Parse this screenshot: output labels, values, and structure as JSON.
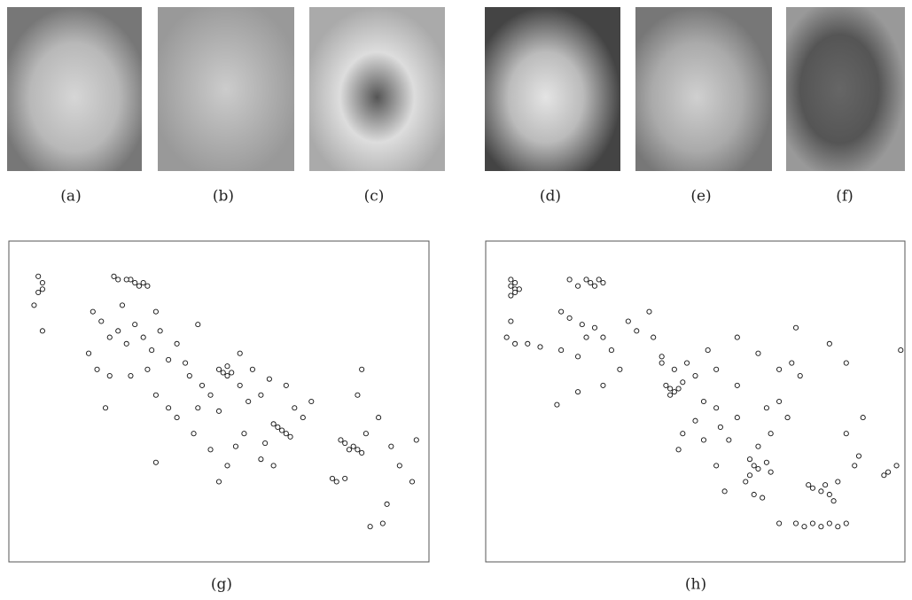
{
  "panels": [
    {
      "label": "(a)"
    },
    {
      "label": "(b)"
    },
    {
      "label": "(c)"
    },
    {
      "label": "(d)"
    },
    {
      "label": "(e)"
    },
    {
      "label": "(f)"
    },
    {
      "label": "(g)"
    },
    {
      "label": "(h)"
    }
  ],
  "chart_data": [
    {
      "type": "scatter",
      "xlim": [
        0,
        100
      ],
      "ylim": [
        0,
        100
      ],
      "x": [
        7,
        8,
        7,
        6,
        8,
        8,
        29,
        30,
        31,
        32,
        28,
        26,
        25,
        33,
        20,
        22,
        24,
        19,
        21,
        26,
        28,
        30,
        32,
        34,
        36,
        38,
        33,
        29,
        40,
        42,
        24,
        45,
        35,
        27,
        43,
        50,
        51,
        52,
        53,
        52,
        48,
        46,
        55,
        57,
        60,
        58,
        55,
        62,
        50,
        45,
        38,
        35,
        40,
        44,
        48,
        52,
        50,
        54,
        64,
        65,
        66,
        67,
        63,
        68,
        70,
        72,
        66,
        61,
        60,
        63,
        56,
        79,
        80,
        82,
        83,
        84,
        81,
        77,
        78,
        80,
        85,
        88,
        91,
        93,
        97,
        96,
        90,
        86,
        89,
        83,
        84,
        23,
        35
      ],
      "y": [
        89,
        87,
        84,
        80,
        72,
        85,
        88,
        87,
        86,
        87,
        88,
        88,
        89,
        86,
        78,
        75,
        70,
        65,
        60,
        72,
        68,
        74,
        70,
        66,
        72,
        63,
        60,
        58,
        68,
        62,
        58,
        74,
        78,
        80,
        58,
        60,
        59,
        58,
        59,
        61,
        52,
        55,
        55,
        50,
        52,
        60,
        65,
        57,
        47,
        48,
        48,
        52,
        45,
        40,
        35,
        30,
        25,
        36,
        42,
        41,
        40,
        39,
        43,
        48,
        45,
        50,
        55,
        37,
        32,
        30,
        40,
        38,
        37,
        36,
        35,
        34,
        35,
        26,
        25,
        26,
        40,
        45,
        36,
        30,
        38,
        25,
        18,
        11,
        12,
        52,
        60,
        48,
        31
      ]
    },
    {
      "type": "scatter",
      "xlim": [
        0,
        100
      ],
      "ylim": [
        0,
        100
      ],
      "x": [
        6,
        7,
        7,
        8,
        6,
        7,
        6,
        5,
        7,
        10,
        13,
        6,
        24,
        25,
        26,
        27,
        28,
        22,
        20,
        18,
        20,
        23,
        26,
        24,
        18,
        22,
        28,
        30,
        34,
        36,
        39,
        40,
        42,
        32,
        28,
        17,
        22,
        43,
        44,
        45,
        46,
        44,
        47,
        45,
        42,
        48,
        50,
        52,
        55,
        50,
        47,
        46,
        52,
        56,
        60,
        58,
        55,
        57,
        63,
        62,
        65,
        68,
        67,
        70,
        72,
        60,
        55,
        53,
        60,
        65,
        70,
        75,
        64,
        65,
        67,
        68,
        63,
        64,
        66,
        77,
        78,
        80,
        81,
        82,
        83,
        84,
        74,
        76,
        78,
        80,
        82,
        84,
        86,
        70,
        88,
        89,
        86,
        90,
        95,
        96,
        98,
        99,
        82,
        73,
        86,
        74
      ],
      "y": [
        86,
        85,
        84,
        85,
        83,
        87,
        88,
        70,
        68,
        68,
        67,
        75,
        88,
        87,
        86,
        88,
        87,
        86,
        88,
        78,
        76,
        74,
        73,
        70,
        66,
        64,
        70,
        66,
        75,
        72,
        78,
        70,
        64,
        60,
        55,
        49,
        53,
        55,
        54,
        53,
        54,
        52,
        56,
        60,
        62,
        62,
        58,
        50,
        48,
        44,
        40,
        35,
        38,
        42,
        45,
        38,
        30,
        22,
        32,
        25,
        36,
        40,
        48,
        50,
        45,
        55,
        60,
        66,
        70,
        65,
        60,
        58,
        30,
        29,
        31,
        28,
        27,
        21,
        20,
        24,
        23,
        22,
        24,
        21,
        19,
        25,
        12,
        11,
        12,
        11,
        12,
        11,
        12,
        12,
        30,
        33,
        40,
        45,
        27,
        28,
        30,
        66,
        68,
        62,
        62,
        73
      ]
    }
  ]
}
